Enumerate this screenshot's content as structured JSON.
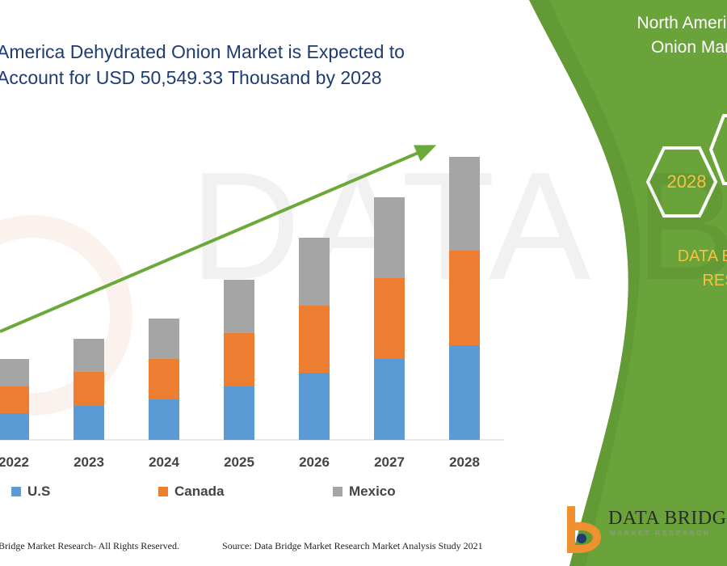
{
  "title_lines": [
    "America Dehydrated Onion Market is Expected to",
    "Account for USD 50,549.33 Thousand by 2028"
  ],
  "chart_data": {
    "type": "bar",
    "stacked": true,
    "categories": [
      "2022",
      "2023",
      "2024",
      "2025",
      "2026",
      "2027",
      "2028"
    ],
    "series": [
      {
        "name": "U.S",
        "color": "#5b9bd5",
        "values": [
          33,
          42,
          50,
          66,
          83,
          100,
          117
        ]
      },
      {
        "name": "Canada",
        "color": "#ed7d31",
        "values": [
          33,
          42,
          50,
          66,
          83,
          100,
          117
        ]
      },
      {
        "name": "Mexico",
        "color": "#a5a5a5",
        "values": [
          34,
          41,
          50,
          66,
          84,
          100,
          116
        ]
      }
    ],
    "ylim": [
      0,
      360
    ],
    "grid": false,
    "legend_position": "bottom",
    "trend_arrow": true,
    "arrow_color": "#6aaa3a"
  },
  "legend": [
    {
      "label": "U.S",
      "color": "#5b9bd5"
    },
    {
      "label": "Canada",
      "color": "#ed7d31"
    },
    {
      "label": "Mexico",
      "color": "#a5a5a5"
    }
  ],
  "footer": {
    "copyright": "Bridge Market Research- All Rights Reserved.",
    "source": "Source: Data Bridge Market Research Market Analysis Study 2021"
  },
  "panel": {
    "color": "#6aa33a",
    "title_lines": [
      "North America",
      "Onion Mar"
    ],
    "hexagon_year": "2028",
    "brand_lines": [
      "DATA BRID",
      "RES"
    ],
    "accent": "#f5c242"
  },
  "watermark": "DATA BRIDGE",
  "logo": {
    "name": "DATA BRIDGE",
    "sub": "MARKET RESEARCH"
  }
}
